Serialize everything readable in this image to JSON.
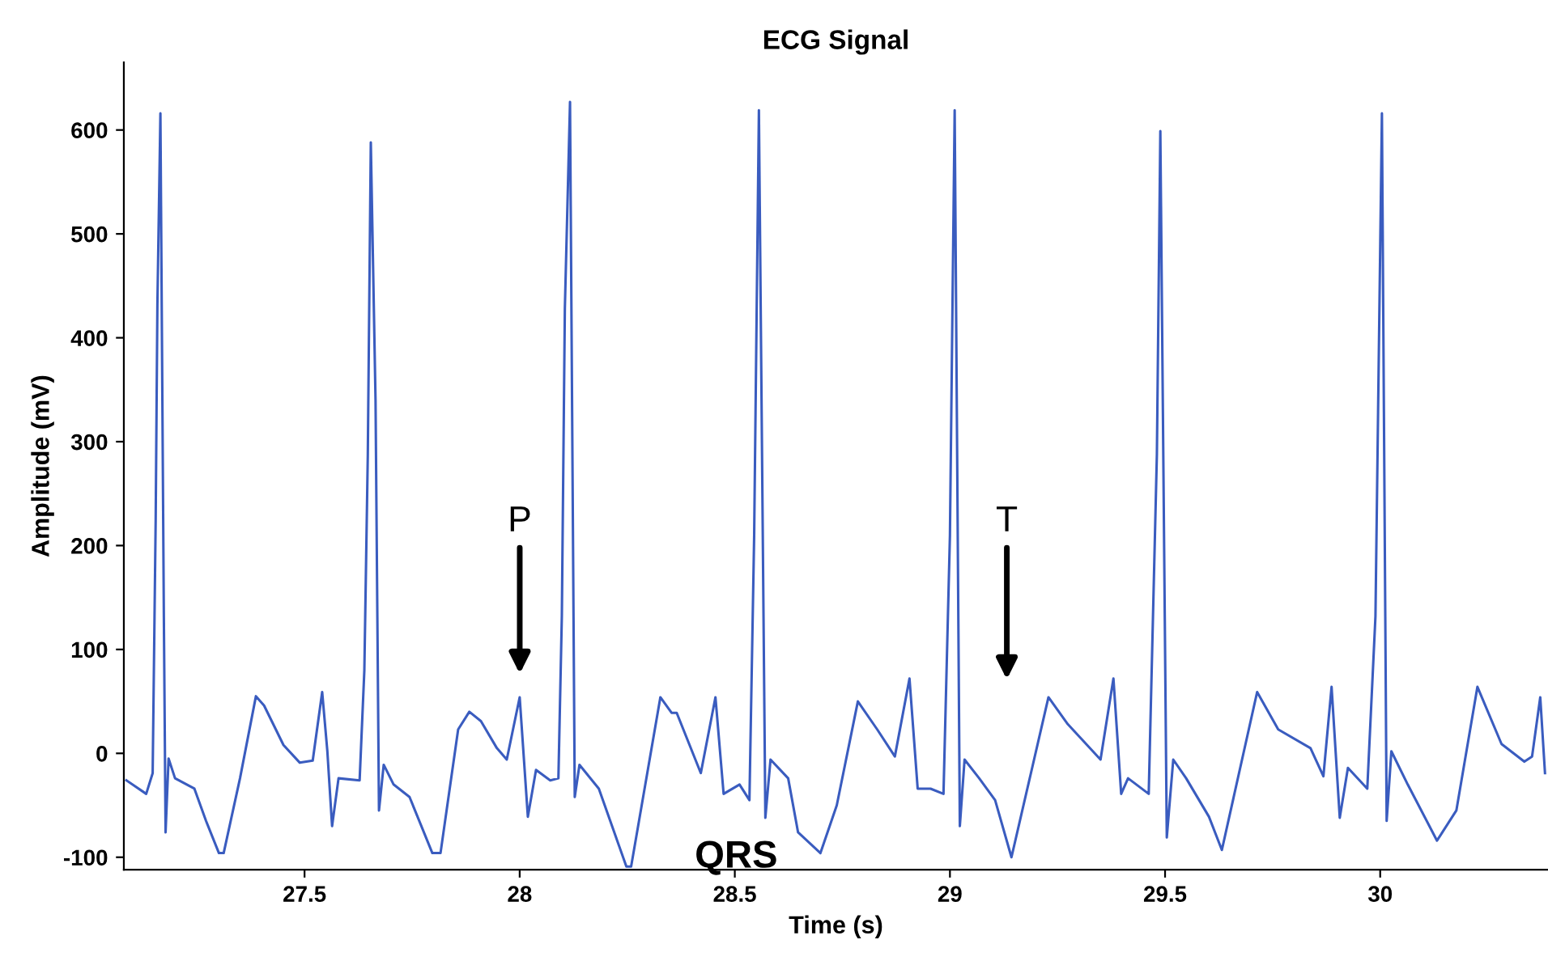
{
  "chart_data": {
    "type": "line",
    "title": "ECG Signal",
    "xlabel": "Time (s)",
    "ylabel": "Amplitude (mV)",
    "xlim": [
      27.08,
      30.39
    ],
    "ylim": [
      -112,
      665
    ],
    "xticks": [
      27.5,
      28,
      28.5,
      29,
      29.5,
      30
    ],
    "yticks": [
      -100,
      0,
      100,
      200,
      300,
      400,
      500,
      600
    ],
    "grid": false,
    "legend": false,
    "marker": "none",
    "line_style": "solid",
    "annotations": [
      "P",
      "T",
      "QRS"
    ],
    "series": [
      {
        "color": "#3a5cbf",
        "x": [
          27.086,
          27.132,
          27.147,
          27.154,
          27.158,
          27.165,
          27.173,
          27.177,
          27.184,
          27.199,
          27.244,
          27.271,
          27.301,
          27.312,
          27.35,
          27.387,
          27.406,
          27.451,
          27.489,
          27.519,
          27.541,
          27.553,
          27.564,
          27.579,
          27.628,
          27.639,
          27.647,
          27.654,
          27.665,
          27.673,
          27.684,
          27.707,
          27.744,
          27.797,
          27.816,
          27.857,
          27.883,
          27.91,
          27.947,
          27.97,
          28.0,
          28.019,
          28.038,
          28.071,
          28.09,
          28.098,
          28.105,
          28.117,
          28.128,
          28.139,
          28.184,
          28.248,
          28.259,
          28.327,
          28.353,
          28.365,
          28.421,
          28.455,
          28.474,
          28.511,
          28.534,
          28.545,
          28.556,
          28.571,
          28.583,
          28.624,
          28.647,
          28.699,
          28.737,
          28.786,
          28.831,
          28.872,
          28.906,
          28.925,
          28.955,
          28.985,
          29.0,
          29.011,
          29.023,
          29.034,
          29.068,
          29.105,
          29.143,
          29.229,
          29.274,
          29.35,
          29.38,
          29.398,
          29.414,
          29.462,
          29.481,
          29.489,
          29.504,
          29.519,
          29.549,
          29.602,
          29.632,
          29.714,
          29.763,
          29.838,
          29.868,
          29.887,
          29.906,
          29.925,
          29.97,
          29.989,
          30.004,
          30.015,
          30.026,
          30.064,
          30.132,
          30.177,
          30.226,
          30.282,
          30.335,
          30.353,
          30.372,
          30.383
        ],
        "values": [
          -26,
          -39,
          -19,
          225,
          432,
          616,
          132,
          -76,
          -5,
          -24,
          -34,
          -65,
          -96,
          -96,
          -24,
          55,
          46,
          8,
          -9,
          -7,
          59,
          2,
          -70,
          -24,
          -26,
          80,
          287,
          588,
          340,
          -55,
          -11,
          -30,
          -42,
          -96,
          -96,
          23,
          40,
          31,
          5,
          -6,
          54,
          -61,
          -16,
          -26,
          -24,
          132,
          428,
          627,
          -42,
          -11,
          -34,
          -109,
          -109,
          54,
          39,
          39,
          -19,
          54,
          -39,
          -30,
          -45,
          210,
          619,
          -62,
          -6,
          -24,
          -76,
          -96,
          -50,
          50,
          23,
          -3,
          72,
          -34,
          -34,
          -39,
          210,
          619,
          -70,
          -6,
          -24,
          -45,
          -100,
          54,
          28,
          -6,
          72,
          -39,
          -24,
          -39,
          288,
          599,
          -81,
          -6,
          -24,
          -61,
          -93,
          59,
          23,
          5,
          -22,
          64,
          -62,
          -14,
          -34,
          132,
          616,
          -65,
          2,
          -30,
          -84,
          -55,
          64,
          9,
          -8,
          -3,
          54,
          -19
        ]
      }
    ]
  }
}
